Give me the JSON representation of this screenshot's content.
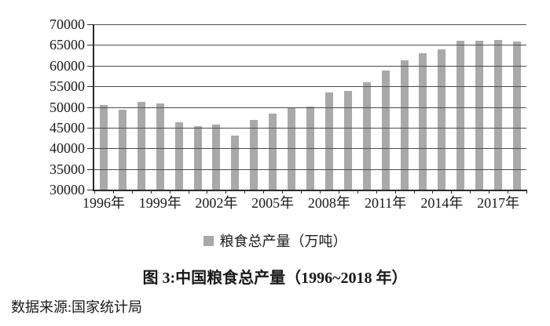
{
  "figure": {
    "caption": "图 3:中国粮食总产量（1996~2018 年）",
    "source": "数据来源:国家统计局"
  },
  "chart_data": {
    "type": "bar",
    "title": "图 3:中国粮食总产量（1996~2018 年）",
    "series_name": "粮食总产量（万吨）",
    "years": [
      1996,
      1997,
      1998,
      1999,
      2000,
      2001,
      2002,
      2003,
      2004,
      2005,
      2006,
      2007,
      2008,
      2009,
      2010,
      2011,
      2012,
      2013,
      2014,
      2015,
      2016,
      2017,
      2018
    ],
    "values": [
      50454,
      49417,
      51230,
      50839,
      46218,
      45264,
      45706,
      43070,
      46947,
      48402,
      49804,
      50160,
      53434,
      53941,
      55911,
      58849,
      61223,
      63048,
      63965,
      66060,
      66044,
      66161,
      65789
    ],
    "ylim": [
      30000,
      70000
    ],
    "ytick_step": 5000,
    "ytick_labels": [
      "70000",
      "65000",
      "60000",
      "55000",
      "50000",
      "45000",
      "40000",
      "35000",
      "30000"
    ],
    "xtick_labels": [
      "1996年",
      "1999年",
      "2002年",
      "2005年",
      "2008年",
      "2011年",
      "2014年",
      "2017年"
    ],
    "xtick_indices": [
      0,
      3,
      6,
      9,
      12,
      15,
      18,
      21
    ],
    "grid": true,
    "legend_position": "bottom",
    "bar_color": "#a9a9a9",
    "legend_label": "粮食总产量（万吨）"
  }
}
